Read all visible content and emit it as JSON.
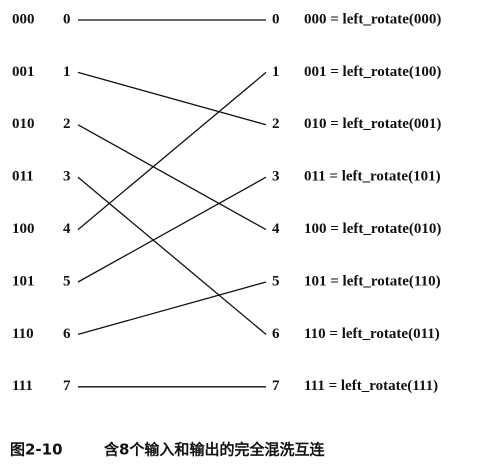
{
  "inputs": [
    {
      "binary": "000",
      "decimal": "0"
    },
    {
      "binary": "001",
      "decimal": "1"
    },
    {
      "binary": "010",
      "decimal": "2"
    },
    {
      "binary": "011",
      "decimal": "3"
    },
    {
      "binary": "100",
      "decimal": "4"
    },
    {
      "binary": "101",
      "decimal": "5"
    },
    {
      "binary": "110",
      "decimal": "6"
    },
    {
      "binary": "111",
      "decimal": "7"
    }
  ],
  "outputs": [
    {
      "decimal": "0",
      "equation": "000 = left_rotate(000)"
    },
    {
      "decimal": "1",
      "equation": "001 = left_rotate(100)"
    },
    {
      "decimal": "2",
      "equation": "010 = left_rotate(001)"
    },
    {
      "decimal": "3",
      "equation": "011 = left_rotate(101)"
    },
    {
      "decimal": "4",
      "equation": "100 = left_rotate(010)"
    },
    {
      "decimal": "5",
      "equation": "101 = left_rotate(110)"
    },
    {
      "decimal": "6",
      "equation": "110 = left_rotate(011)"
    },
    {
      "decimal": "7",
      "equation": "111 = left_rotate(111)"
    }
  ],
  "caption": {
    "figure": "图2-10",
    "title": "含8个输入和输出的完全混洗互连"
  }
}
